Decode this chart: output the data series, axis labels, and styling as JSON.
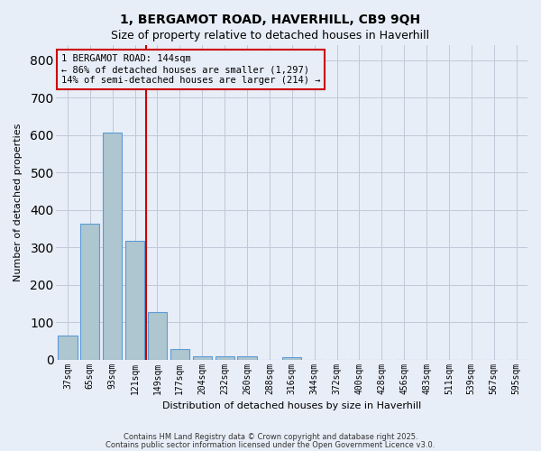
{
  "title1": "1, BERGAMOT ROAD, HAVERHILL, CB9 9QH",
  "title2": "Size of property relative to detached houses in Haverhill",
  "xlabel": "Distribution of detached houses by size in Haverhill",
  "ylabel": "Number of detached properties",
  "bar_labels": [
    "37sqm",
    "65sqm",
    "93sqm",
    "121sqm",
    "149sqm",
    "177sqm",
    "204sqm",
    "232sqm",
    "260sqm",
    "288sqm",
    "316sqm",
    "344sqm",
    "372sqm",
    "400sqm",
    "428sqm",
    "456sqm",
    "483sqm",
    "511sqm",
    "539sqm",
    "567sqm",
    "595sqm"
  ],
  "bar_values": [
    65,
    362,
    607,
    317,
    128,
    28,
    8,
    8,
    8,
    0,
    7,
    0,
    0,
    0,
    0,
    0,
    0,
    0,
    0,
    0,
    0
  ],
  "bar_color": "#aec6cf",
  "bar_edgecolor": "#5b9bd5",
  "vline_x": 3.5,
  "vline_color": "#cc0000",
  "annotation_title": "1 BERGAMOT ROAD: 144sqm",
  "annotation_line2": "← 86% of detached houses are smaller (1,297)",
  "annotation_line3": "14% of semi-detached houses are larger (214) →",
  "annotation_box_color": "#cc0000",
  "ylim": [
    0,
    840
  ],
  "yticks": [
    0,
    100,
    200,
    300,
    400,
    500,
    600,
    700,
    800
  ],
  "grid_color": "#c0c8d8",
  "bg_color": "#e8eef8",
  "footer1": "Contains HM Land Registry data © Crown copyright and database right 2025.",
  "footer2": "Contains public sector information licensed under the Open Government Licence v3.0."
}
